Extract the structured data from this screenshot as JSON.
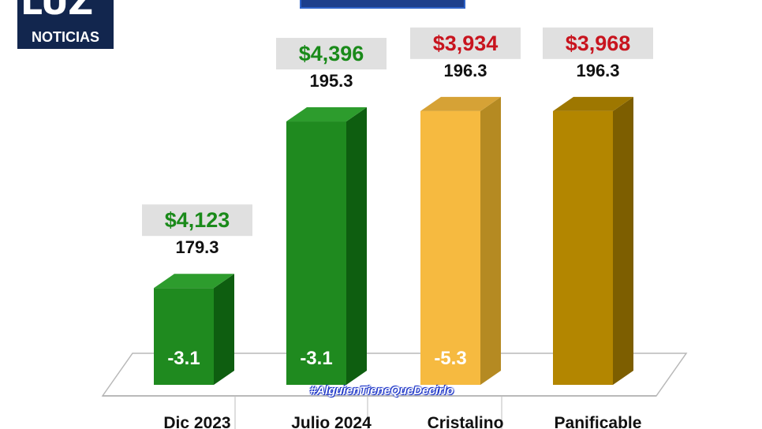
{
  "logo": {
    "mark": "LUZ",
    "sub": "NOTICIAS"
  },
  "hashtag": "#AlguienTieneQueDecirlo",
  "colors": {
    "green_front": "#1f8a1f",
    "green_side": "#0e5e10",
    "green_top": "#2d9c2d",
    "yellow_front": "#f6ba40",
    "yellow_side": "#b58a22",
    "yellow_top": "#d6a236",
    "gold_front": "#b38600",
    "gold_side": "#7d5e00",
    "gold_top": "#9e7700",
    "price_green": "#1a8a1a",
    "price_red": "#c8141e",
    "price_box": "#e0e0e0",
    "text": "#111111"
  },
  "chart_data": {
    "type": "bar",
    "categories": [
      "Dic 2023",
      "Julio 2024",
      "Cristalino",
      "Panificable"
    ],
    "values": [
      179.3,
      195.3,
      196.3,
      196.3
    ],
    "prices": [
      "$4,123",
      "$4,396",
      "$3,934",
      "$3,968"
    ],
    "price_colors": [
      "green",
      "green",
      "red",
      "red"
    ],
    "inner_labels": [
      "-3.1",
      "-3.1",
      "-5.3",
      ""
    ],
    "value_labels": [
      "179.3",
      "195.3",
      "196.3",
      "196.3"
    ],
    "bar_styles": [
      "green",
      "green",
      "yellow",
      "gold"
    ],
    "ylim": [
      170,
      200
    ],
    "grid": false,
    "title": "",
    "xlabel": "",
    "ylabel": ""
  }
}
